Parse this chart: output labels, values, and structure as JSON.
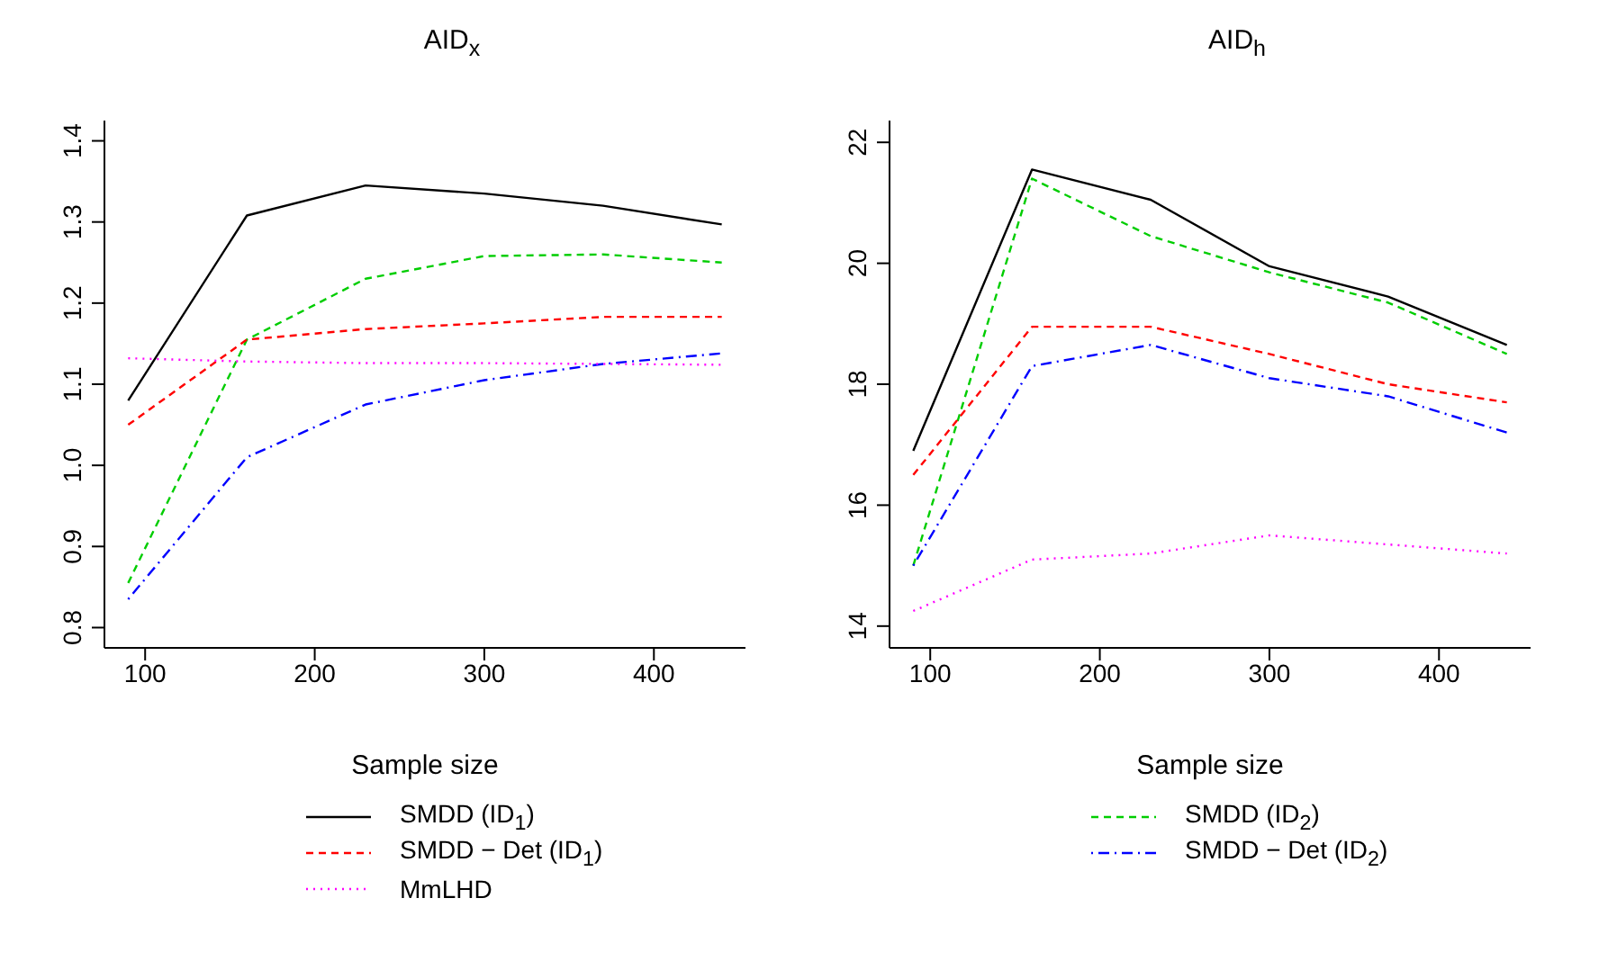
{
  "chart_data": [
    {
      "type": "line",
      "title": "AID$_{x}$",
      "xlabel": "Sample size",
      "x": [
        90,
        160,
        230,
        300,
        370,
        440
      ],
      "xlim": [
        76,
        454
      ],
      "xticks": [
        100,
        200,
        300,
        400
      ],
      "ylim": [
        0.775,
        1.425
      ],
      "yticks": [
        0.8,
        0.9,
        {
          "value": 1.0,
          "label": "1.0"
        },
        1.1,
        1.2,
        1.3,
        1.4
      ],
      "legend": "bottom",
      "grid": false,
      "series": [
        {
          "name": "SMDD (ID$_{1}$)",
          "color": "#000000",
          "line_style": "solid",
          "values": [
            1.08,
            1.308,
            1.345,
            1.335,
            1.32,
            1.297
          ]
        },
        {
          "color": "#00cd00",
          "line_style": "dashed",
          "values": [
            0.855,
            1.155,
            1.23,
            1.258,
            1.26,
            1.25
          ]
        },
        {
          "name": "SMDD − Det (ID$_{1}$)",
          "color": "#ff0000",
          "line_style": "dashed",
          "values": [
            1.05,
            1.155,
            1.168,
            1.175,
            1.183,
            1.183
          ]
        },
        {
          "color": "#0000ff",
          "line_style": "dashdot",
          "values": [
            0.835,
            1.01,
            1.075,
            1.105,
            1.125,
            1.138
          ]
        },
        {
          "name": "MmLHD",
          "color": "#ff00ff",
          "line_style": "dotted",
          "values": [
            1.132,
            1.128,
            1.126,
            1.126,
            1.125,
            1.124
          ]
        }
      ]
    },
    {
      "type": "line",
      "title": "AID$_{h}$",
      "xlabel": "Sample size",
      "x": [
        90,
        160,
        230,
        300,
        370,
        440
      ],
      "xlim": [
        76,
        454
      ],
      "xticks": [
        100,
        200,
        300,
        400
      ],
      "ylim": [
        13.64,
        22.36
      ],
      "yticks": [
        14,
        16,
        18,
        20,
        22
      ],
      "legend": "bottom",
      "grid": false,
      "series": [
        {
          "color": "#000000",
          "line_style": "solid",
          "values": [
            16.9,
            21.55,
            21.05,
            19.95,
            19.45,
            18.65
          ]
        },
        {
          "name": "SMDD (ID$_{2}$)",
          "color": "#00cd00",
          "line_style": "dashed",
          "values": [
            15.0,
            21.4,
            20.45,
            19.85,
            19.35,
            18.5
          ]
        },
        {
          "color": "#ff0000",
          "line_style": "dashed",
          "values": [
            16.5,
            18.95,
            18.95,
            18.5,
            18.0,
            17.7
          ]
        },
        {
          "name": "SMDD − Det (ID$_{2}$)",
          "color": "#0000ff",
          "line_style": "dashdot",
          "values": [
            15.0,
            18.3,
            18.65,
            18.1,
            17.8,
            17.2
          ]
        },
        {
          "color": "#ff00ff",
          "line_style": "dotted",
          "values": [
            14.25,
            15.1,
            15.2,
            15.5,
            15.35,
            15.2
          ]
        }
      ]
    }
  ]
}
